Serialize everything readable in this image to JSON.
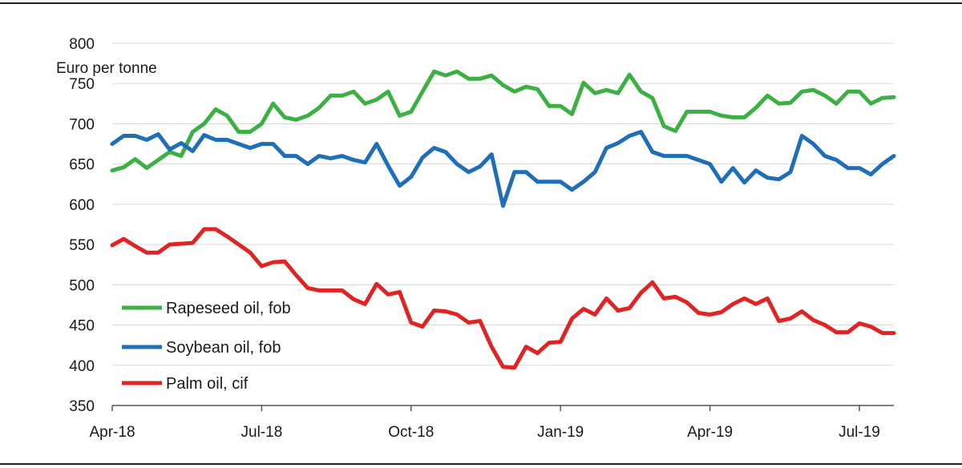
{
  "chart_data": {
    "type": "line",
    "title": "",
    "ylabel": "Euro per tonne",
    "xlabel": "",
    "ylim": [
      350,
      800
    ],
    "yticks": [
      350,
      400,
      450,
      500,
      550,
      600,
      650,
      700,
      750,
      800
    ],
    "grid": true,
    "legend_position": "bottom-left",
    "x_tick_labels": [
      "Apr-18",
      "Jul-18",
      "Oct-18",
      "Jan-19",
      "Apr-19",
      "Jul-19"
    ],
    "x_tick_index": [
      0,
      13,
      26,
      39,
      52,
      65
    ],
    "series": [
      {
        "name": "Rapeseed oil, fob",
        "color": "#3cb043",
        "values": [
          642,
          646,
          656,
          645,
          655,
          665,
          660,
          690,
          700,
          718,
          710,
          690,
          690,
          700,
          725,
          708,
          705,
          710,
          720,
          735,
          735,
          740,
          725,
          730,
          740,
          710,
          715,
          740,
          765,
          760,
          765,
          756,
          756,
          760,
          748,
          740,
          746,
          743,
          722,
          722,
          712,
          751,
          738,
          742,
          738,
          761,
          740,
          732,
          697,
          691,
          715,
          715,
          715,
          710,
          708,
          708,
          720,
          735,
          725,
          726,
          740,
          742,
          735,
          725,
          740,
          740,
          725,
          732,
          733
        ]
      },
      {
        "name": "Soybean oil, fob",
        "color": "#1f6fb8",
        "values": [
          675,
          685,
          685,
          680,
          687,
          668,
          676,
          666,
          686,
          680,
          680,
          675,
          670,
          675,
          675,
          660,
          660,
          650,
          660,
          657,
          660,
          655,
          652,
          675,
          648,
          623,
          634,
          658,
          670,
          665,
          650,
          640,
          647,
          662,
          598,
          640,
          640,
          628,
          628,
          628,
          618,
          628,
          640,
          670,
          676,
          685,
          690,
          665,
          660,
          660,
          660,
          655,
          650,
          628,
          645,
          627,
          642,
          633,
          631,
          640,
          685,
          675,
          660,
          655,
          645,
          645,
          637,
          650,
          660
        ]
      },
      {
        "name": "Palm oil, cif",
        "color": "#e02424",
        "values": [
          549,
          557,
          548,
          540,
          540,
          550,
          551,
          552,
          569,
          569,
          560,
          550,
          540,
          523,
          528,
          529,
          512,
          496,
          493,
          493,
          493,
          482,
          476,
          501,
          488,
          491,
          453,
          448,
          468,
          467,
          463,
          453,
          455,
          423,
          398,
          397,
          423,
          415,
          428,
          429,
          458,
          470,
          463,
          483,
          468,
          471,
          490,
          503,
          483,
          485,
          478,
          465,
          463,
          466,
          476,
          483,
          476,
          483,
          455,
          458,
          467,
          456,
          450,
          441,
          441,
          452,
          448,
          440,
          440
        ]
      }
    ]
  }
}
